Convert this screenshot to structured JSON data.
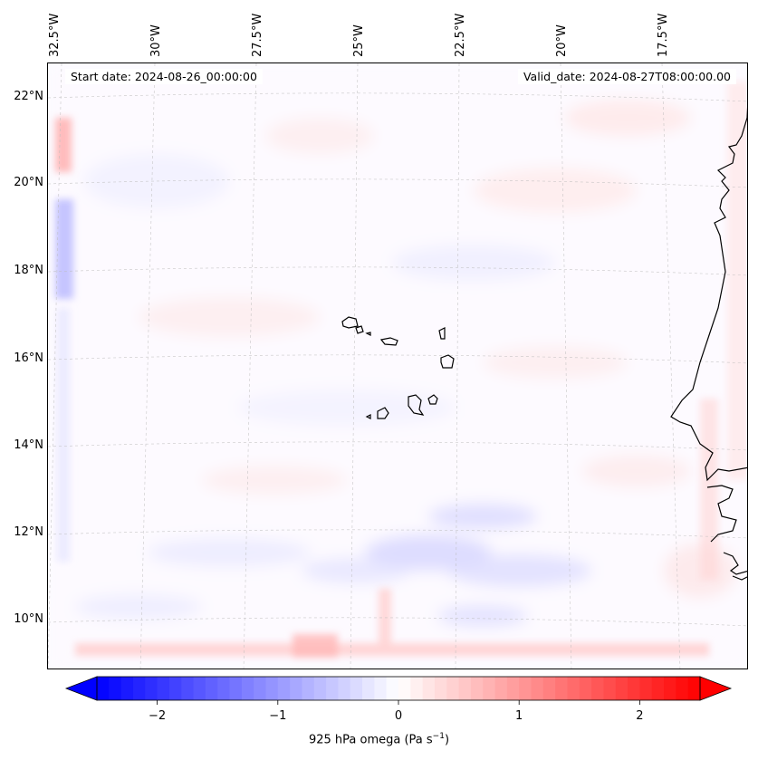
{
  "map": {
    "start_date": "Start date: 2024-08-26_00:00:00",
    "valid_date": "Valid_date: 2024-08-27T08:00:00.00",
    "lon_labels": [
      "32.5°W",
      "30°W",
      "27.5°W",
      "25°W",
      "22.5°W",
      "20°W",
      "17.5°W"
    ],
    "lat_labels": [
      "22°N",
      "20°N",
      "18°N",
      "16°N",
      "14°N",
      "12°N",
      "10°N"
    ]
  },
  "colorbar": {
    "ticks": [
      "−2",
      "−1",
      "0",
      "1",
      "2"
    ],
    "title": "925 hPa omega (Pa s",
    "title_exp": "−1",
    "title_close": ")",
    "min_color": "#0000ff",
    "mid_color": "#ffffff",
    "max_color": "#ff0000"
  }
}
